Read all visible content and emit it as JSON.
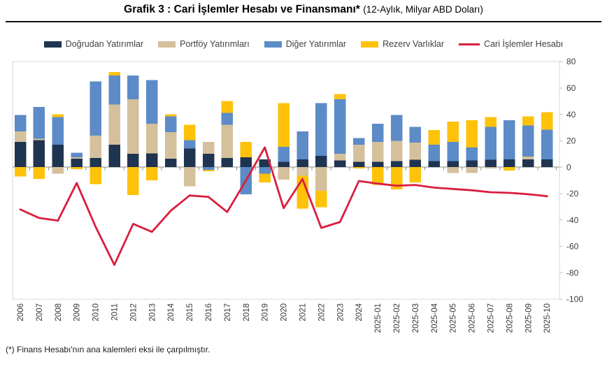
{
  "header": {
    "title": "Grafik 3 : Cari İşlemler Hesabı ve Finansmanı*",
    "subtitle": "(12-Aylık, Milyar ABD Doları)"
  },
  "footnote": "(*) Finans Hesabı'nın ana kalemleri eksi ile çarpılmıştır.",
  "colors": {
    "dogrudan": "#1f3450",
    "portfoy": "#d5c09c",
    "diger": "#5c8bc7",
    "rezerv": "#ffc20a",
    "line": "#da1e3e",
    "axis_text": "#404040",
    "tick_label": "#3a3a3a",
    "axis_line": "#8c8c8c",
    "plot_border": "#d9d9d9"
  },
  "chart_data": {
    "type": "bar",
    "subtype": "stacked-bars-with-line-overlay",
    "title": "Grafik 3 : Cari İşlemler Hesabı ve Finansmanı* (12-Aylık, Milyar ABD Doları)",
    "xlabel": "",
    "ylabel": "",
    "ylim": [
      -100,
      80
    ],
    "yticks": [
      80,
      60,
      40,
      20,
      0,
      -20,
      -40,
      -60,
      -80,
      -100
    ],
    "grid": false,
    "legend_position": "top",
    "categories": [
      "2006",
      "2007",
      "2008",
      "2009",
      "2010",
      "2011",
      "2012",
      "2013",
      "2014",
      "2015",
      "2016",
      "2017",
      "2018",
      "2019",
      "2020",
      "2021",
      "2022",
      "2023",
      "2024",
      "2025-01",
      "2025-02",
      "2025-03",
      "2025-04",
      "2025-05",
      "2025-06",
      "2025-07",
      "2025-08",
      "2025-09",
      "2025-10"
    ],
    "series": [
      {
        "name": "Doğrudan Yatırımlar",
        "color_key": "dogrudan",
        "values": [
          19,
          20.5,
          17,
          6.5,
          7,
          17,
          10,
          10.5,
          6.5,
          14,
          10,
          7,
          7.5,
          6,
          4,
          6,
          8.5,
          5,
          4,
          4,
          4.5,
          5.5,
          4.5,
          4.5,
          5,
          5.5,
          6,
          6,
          6
        ]
      },
      {
        "name": "Portföy Yatırımları",
        "color_key": "portfoy",
        "values": [
          8,
          1,
          -5,
          1,
          17,
          30.5,
          41.5,
          22.5,
          20,
          -14.5,
          9,
          25,
          0,
          0,
          -9.5,
          -6.5,
          -18,
          5,
          13,
          15,
          15.5,
          13,
          0,
          -4.5,
          -4.5,
          -1,
          0,
          2,
          0
        ]
      },
      {
        "name": "Diğer Yatırımlar",
        "color_key": "diger",
        "values": [
          12.5,
          24,
          21,
          3.5,
          41,
          22,
          18,
          33,
          12,
          6.5,
          -2,
          9,
          -20.5,
          -5,
          11.5,
          21,
          40,
          41.5,
          5,
          14,
          19.5,
          12,
          12.5,
          14.5,
          10,
          25,
          29.5,
          23.5,
          22.5
        ]
      },
      {
        "name": "Rezerv Varlıklar",
        "color_key": "rezerv",
        "values": [
          -7,
          -9,
          2,
          -1.5,
          -13,
          2.5,
          -21,
          -10,
          1.5,
          11.5,
          -1,
          9,
          11.5,
          -6.5,
          33,
          -25,
          -12.5,
          4,
          -1,
          -13.5,
          -17,
          -11.5,
          11,
          15.5,
          20.5,
          7.5,
          -2.5,
          7,
          13
        ]
      }
    ],
    "line_series": {
      "name": "Cari İşlemler Hesabı",
      "color_key": "line",
      "values": [
        -32,
        -38.5,
        -40.5,
        -12,
        -45,
        -74,
        -43,
        -49,
        -33,
        -21.5,
        -22.5,
        -34,
        -10,
        15,
        -31,
        -9,
        -46,
        -41.5,
        -10.5,
        -12.5,
        -14,
        -13.5,
        -15.5,
        -16.5,
        -17.5,
        -19,
        -19.5,
        -20.5,
        -22
      ]
    }
  }
}
